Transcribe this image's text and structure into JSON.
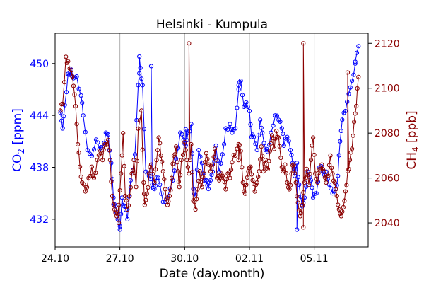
{
  "chart_data": {
    "type": "line",
    "title": "Helsinki - Kumpula",
    "xlabel": "Date (day.month)",
    "ylabel_left": "CO2 [ppm]",
    "ylabel_left_main": "CO",
    "ylabel_left_sub": "2",
    "ylabel_left_unit": " [ppm]",
    "ylabel_right": "CH4 [ppb]",
    "ylabel_right_main": "CH",
    "ylabel_right_sub": "4",
    "ylabel_right_unit": " [ppb]",
    "xlim": [
      0,
      14.5
    ],
    "ylim_left": [
      428.8,
      453.5
    ],
    "ylim_right": [
      2029.3,
      2124.5
    ],
    "x_ticks": [
      {
        "x": 0,
        "label": "24.10"
      },
      {
        "x": 3,
        "label": "27.10"
      },
      {
        "x": 6,
        "label": "30.10"
      },
      {
        "x": 9,
        "label": "02.11"
      },
      {
        "x": 12,
        "label": "05.11"
      }
    ],
    "y_left_ticks": [
      432,
      438,
      444,
      450
    ],
    "y_right_ticks": [
      2040,
      2060,
      2080,
      2100,
      2120
    ],
    "vertical_grid": [
      3,
      6,
      9,
      12
    ],
    "colors": {
      "co2": "#0000ff",
      "ch4": "#8b0000",
      "grid": "#b0b0b0"
    },
    "co2_knots": [
      [
        0.25,
        444.3
      ],
      [
        0.35,
        442.5
      ],
      [
        0.45,
        445.2
      ],
      [
        0.6,
        448.8
      ],
      [
        0.7,
        449.0
      ],
      [
        0.85,
        448.3
      ],
      [
        1.0,
        448.5
      ],
      [
        1.2,
        446.3
      ],
      [
        1.3,
        444.0
      ],
      [
        1.5,
        440.0
      ],
      [
        1.7,
        439.3
      ],
      [
        1.9,
        441.2
      ],
      [
        2.05,
        440.1
      ],
      [
        2.2,
        440.3
      ],
      [
        2.35,
        442.0
      ],
      [
        2.45,
        441.8
      ],
      [
        2.6,
        438.5
      ],
      [
        2.7,
        434.5
      ],
      [
        2.8,
        433.5
      ],
      [
        2.9,
        432.0
      ],
      [
        3.0,
        431.2
      ],
      [
        3.1,
        434.5
      ],
      [
        3.2,
        433.5
      ],
      [
        3.35,
        432.0
      ],
      [
        3.5,
        436.5
      ],
      [
        3.7,
        439.5
      ],
      [
        3.85,
        447.5
      ],
      [
        3.95,
        449.5
      ],
      [
        4.05,
        447.5
      ],
      [
        4.2,
        437.5
      ],
      [
        4.35,
        437.0
      ],
      [
        4.5,
        436.0
      ],
      [
        4.6,
        435.5
      ],
      [
        4.7,
        436.8
      ],
      [
        4.85,
        436.0
      ],
      [
        5.0,
        434.0
      ],
      [
        5.2,
        434.5
      ],
      [
        5.45,
        436.5
      ],
      [
        5.6,
        439.0
      ],
      [
        5.8,
        442.0
      ],
      [
        5.95,
        441.2
      ],
      [
        6.05,
        440.5
      ],
      [
        6.15,
        442.0
      ],
      [
        6.3,
        443.0
      ],
      [
        6.4,
        435.5
      ],
      [
        6.5,
        434.8
      ],
      [
        6.65,
        440.0
      ],
      [
        6.8,
        438.5
      ],
      [
        6.9,
        436.5
      ],
      [
        7.0,
        436.5
      ],
      [
        7.1,
        435.5
      ],
      [
        7.2,
        436.5
      ],
      [
        7.3,
        437.5
      ],
      [
        7.45,
        440.5
      ],
      [
        7.6,
        437.5
      ],
      [
        7.75,
        439.5
      ],
      [
        7.9,
        442.5
      ],
      [
        8.1,
        443.0
      ],
      [
        8.2,
        442.0
      ],
      [
        8.35,
        442.5
      ],
      [
        8.5,
        447.0
      ],
      [
        8.6,
        448.0
      ],
      [
        8.75,
        445.0
      ],
      [
        8.85,
        445.5
      ],
      [
        9.0,
        444.5
      ],
      [
        9.1,
        441.5
      ],
      [
        9.2,
        441.5
      ],
      [
        9.35,
        440.0
      ],
      [
        9.5,
        443.5
      ],
      [
        9.6,
        442.0
      ],
      [
        9.75,
        440.0
      ],
      [
        9.85,
        439.8
      ],
      [
        10.0,
        442.0
      ],
      [
        10.2,
        444.0
      ],
      [
        10.35,
        443.5
      ],
      [
        10.5,
        442.5
      ],
      [
        10.6,
        440.5
      ],
      [
        10.75,
        441.5
      ],
      [
        10.9,
        440.0
      ],
      [
        11.0,
        438.5
      ],
      [
        11.1,
        437.0
      ],
      [
        11.2,
        438.5
      ],
      [
        11.3,
        436.0
      ],
      [
        11.45,
        433.5
      ],
      [
        11.55,
        434.5
      ],
      [
        11.7,
        437.5
      ],
      [
        11.85,
        436.5
      ],
      [
        11.95,
        434.5
      ],
      [
        12.1,
        435.0
      ],
      [
        12.25,
        438.0
      ],
      [
        12.4,
        437.5
      ],
      [
        12.55,
        437.5
      ],
      [
        12.7,
        436.0
      ],
      [
        12.85,
        435.0
      ],
      [
        13.0,
        435.5
      ],
      [
        13.1,
        437.0
      ],
      [
        13.2,
        441.0
      ],
      [
        13.3,
        443.5
      ],
      [
        13.45,
        444.5
      ],
      [
        13.6,
        446.5
      ],
      [
        13.75,
        448.0
      ],
      [
        13.9,
        450.0
      ],
      [
        14.05,
        452.0
      ]
    ],
    "ch4_knots": [
      [
        0.25,
        2090.0
      ],
      [
        0.35,
        2093.0
      ],
      [
        0.5,
        2114.0
      ],
      [
        0.6,
        2112.0
      ],
      [
        0.75,
        2108.0
      ],
      [
        0.85,
        2101.0
      ],
      [
        0.95,
        2092.0
      ],
      [
        1.05,
        2075.0
      ],
      [
        1.15,
        2065.0
      ],
      [
        1.25,
        2058.0
      ],
      [
        1.4,
        2054.0
      ],
      [
        1.55,
        2060.0
      ],
      [
        1.7,
        2065.0
      ],
      [
        1.8,
        2060.0
      ],
      [
        1.95,
        2068.0
      ],
      [
        2.1,
        2072.0
      ],
      [
        2.2,
        2068.0
      ],
      [
        2.3,
        2075.0
      ],
      [
        2.45,
        2077.0
      ],
      [
        2.55,
        2068.0
      ],
      [
        2.65,
        2052.0
      ],
      [
        2.75,
        2046.0
      ],
      [
        2.85,
        2043.0
      ],
      [
        2.95,
        2048.0
      ],
      [
        3.05,
        2062.0
      ],
      [
        3.15,
        2080.0
      ],
      [
        3.25,
        2052.0
      ],
      [
        3.35,
        2046.0
      ],
      [
        3.45,
        2052.0
      ],
      [
        3.55,
        2062.0
      ],
      [
        3.65,
        2068.0
      ],
      [
        3.75,
        2056.0
      ],
      [
        3.85,
        2082.0
      ],
      [
        4.0,
        2090.0
      ],
      [
        4.1,
        2058.0
      ],
      [
        4.15,
        2048.0
      ],
      [
        4.25,
        2053.0
      ],
      [
        4.35,
        2062.0
      ],
      [
        4.45,
        2066.0
      ],
      [
        4.6,
        2058.0
      ],
      [
        4.7,
        2068.0
      ],
      [
        4.8,
        2078.0
      ],
      [
        4.9,
        2070.0
      ],
      [
        5.0,
        2063.0
      ],
      [
        5.1,
        2055.0
      ],
      [
        5.2,
        2048.0
      ],
      [
        5.3,
        2052.0
      ],
      [
        5.4,
        2060.0
      ],
      [
        5.5,
        2070.0
      ],
      [
        5.6,
        2074.0
      ],
      [
        5.7,
        2063.0
      ],
      [
        5.75,
        2056.0
      ],
      [
        5.85,
        2068.0
      ],
      [
        6.0,
        2076.0
      ],
      [
        6.1,
        2068.0
      ],
      [
        6.2,
        2062.0
      ],
      [
        6.3,
        2075.0
      ],
      [
        6.4,
        2050.0
      ],
      [
        6.5,
        2046.0
      ],
      [
        6.6,
        2055.0
      ],
      [
        6.7,
        2063.0
      ],
      [
        6.8,
        2056.0
      ],
      [
        6.9,
        2062.0
      ],
      [
        7.0,
        2071.0
      ],
      [
        7.1,
        2066.0
      ],
      [
        7.2,
        2063.0
      ],
      [
        7.3,
        2066.0
      ],
      [
        7.4,
        2073.0
      ],
      [
        7.5,
        2060.0
      ],
      [
        7.6,
        2059.0
      ],
      [
        7.7,
        2062.0
      ],
      [
        7.8,
        2060.0
      ],
      [
        7.9,
        2055.0
      ],
      [
        8.0,
        2062.0
      ],
      [
        8.1,
        2060.0
      ],
      [
        8.2,
        2067.0
      ],
      [
        8.35,
        2070.0
      ],
      [
        8.5,
        2075.0
      ],
      [
        8.6,
        2072.0
      ],
      [
        8.7,
        2058.0
      ],
      [
        8.8,
        2053.0
      ],
      [
        8.85,
        2057.0
      ],
      [
        8.95,
        2063.0
      ],
      [
        9.05,
        2065.0
      ],
      [
        9.15,
        2059.0
      ],
      [
        9.25,
        2054.0
      ],
      [
        9.35,
        2058.0
      ],
      [
        9.45,
        2063.0
      ],
      [
        9.55,
        2074.0
      ],
      [
        9.65,
        2063.0
      ],
      [
        9.75,
        2068.0
      ],
      [
        9.85,
        2064.0
      ],
      [
        9.95,
        2072.0
      ],
      [
        10.05,
        2079.0
      ],
      [
        10.15,
        2073.0
      ],
      [
        10.25,
        2081.0
      ],
      [
        10.35,
        2078.0
      ],
      [
        10.45,
        2069.0
      ],
      [
        10.55,
        2063.0
      ],
      [
        10.65,
        2066.0
      ],
      [
        10.75,
        2058.0
      ],
      [
        10.85,
        2055.0
      ],
      [
        10.95,
        2062.0
      ],
      [
        11.05,
        2066.0
      ],
      [
        11.15,
        2058.0
      ],
      [
        11.25,
        2049.0
      ],
      [
        11.35,
        2043.0
      ],
      [
        11.45,
        2048.0
      ],
      [
        11.55,
        2058.0
      ],
      [
        11.65,
        2064.0
      ],
      [
        11.75,
        2057.0
      ],
      [
        11.85,
        2068.0
      ],
      [
        11.95,
        2078.0
      ],
      [
        12.05,
        2062.0
      ],
      [
        12.15,
        2058.0
      ],
      [
        12.25,
        2064.0
      ],
      [
        12.35,
        2066.0
      ],
      [
        12.45,
        2063.0
      ],
      [
        12.55,
        2058.0
      ],
      [
        12.65,
        2061.0
      ],
      [
        12.75,
        2070.0
      ],
      [
        12.85,
        2062.0
      ],
      [
        12.95,
        2058.0
      ],
      [
        13.05,
        2052.0
      ],
      [
        13.15,
        2046.0
      ],
      [
        13.25,
        2043.0
      ],
      [
        13.35,
        2047.0
      ],
      [
        13.45,
        2054.0
      ],
      [
        13.55,
        2063.0
      ],
      [
        13.65,
        2068.0
      ],
      [
        13.75,
        2073.0
      ],
      [
        13.85,
        2085.0
      ],
      [
        13.95,
        2092.0
      ],
      [
        14.05,
        2105.0
      ]
    ],
    "co2_spikes": [
      [
        0.75,
        449.3
      ],
      [
        3.0,
        430.8
      ],
      [
        3.9,
        450.8
      ],
      [
        4.45,
        449.7
      ],
      [
        6.05,
        442.4
      ],
      [
        8.5,
        447.5
      ],
      [
        11.2,
        430.8
      ],
      [
        13.9,
        450.2
      ]
    ],
    "ch4_spikes": [
      [
        6.2,
        2120.0
      ],
      [
        8.5,
        2068.0
      ],
      [
        11.5,
        2120.0
      ],
      [
        11.5,
        2038.0
      ],
      [
        13.55,
        2107.0
      ],
      [
        2.4,
        2075.0
      ],
      [
        2.95,
        2040.0
      ]
    ]
  }
}
